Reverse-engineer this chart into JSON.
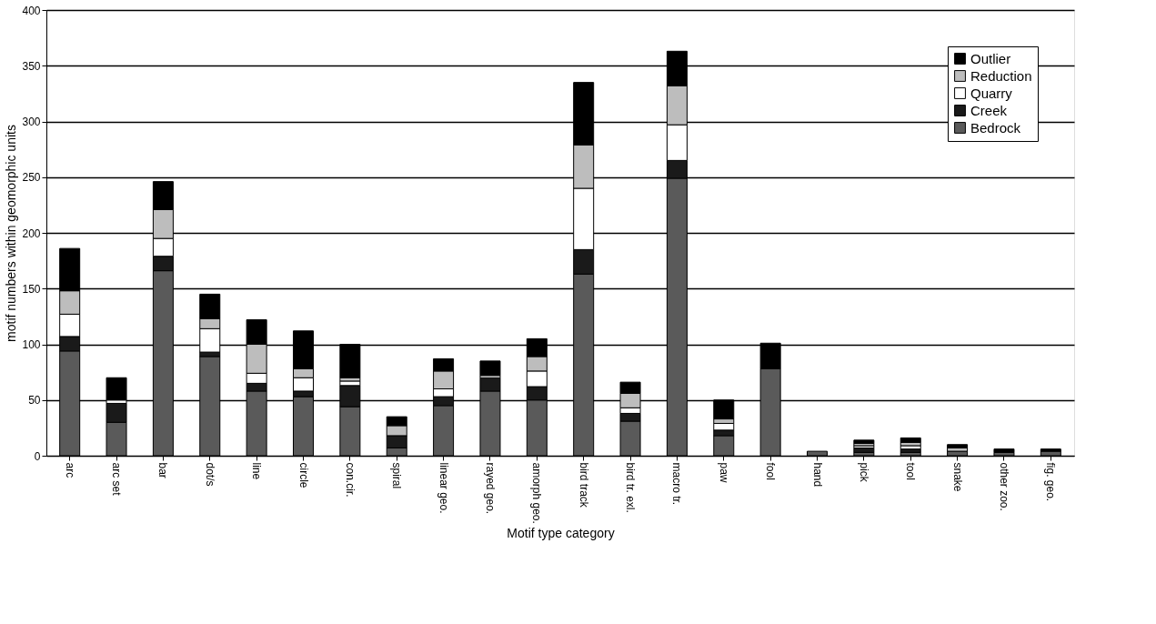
{
  "chart_data": {
    "type": "bar",
    "stacked": true,
    "xlabel": "Motif type category",
    "ylabel": "motif numbers within geomorphic units",
    "categories": [
      "arc",
      "arc set",
      "bar",
      "dot/s",
      "line",
      "circle",
      "con.cir.",
      "spiral",
      "linear geo.",
      "rayed geo.",
      "amorph geo.",
      "bird track",
      "bird tr. exl.",
      "macro tr.",
      "paw",
      "fool",
      "hand",
      "pick",
      "tool",
      "snake",
      "other zoo.",
      "fig. geo."
    ],
    "series": [
      {
        "name": "Bedrock",
        "color": "#5a5a5a",
        "values": [
          94,
          30,
          166,
          89,
          58,
          53,
          44,
          7,
          45,
          58,
          50,
          163,
          31,
          249,
          18,
          78,
          4,
          3,
          3,
          4,
          3,
          4
        ]
      },
      {
        "name": "Creek",
        "color": "#1a1a1a",
        "values": [
          13,
          17,
          13,
          4,
          7,
          5,
          19,
          11,
          8,
          12,
          12,
          22,
          7,
          16,
          5,
          null,
          null,
          4,
          3,
          null,
          null,
          null
        ]
      },
      {
        "name": "Quarry",
        "color": "#ffffff",
        "values": [
          20,
          3,
          16,
          21,
          9,
          12,
          4,
          null,
          7,
          2,
          14,
          55,
          5,
          32,
          6,
          null,
          null,
          2,
          3,
          null,
          null,
          null
        ]
      },
      {
        "name": "Reduction",
        "color": "#bdbdbd",
        "values": [
          21,
          null,
          26,
          9,
          26,
          8,
          3,
          9,
          16,
          null,
          13,
          39,
          13,
          35,
          4,
          null,
          null,
          2,
          3,
          3,
          null,
          null
        ]
      },
      {
        "name": "Outlier",
        "color": "#000000",
        "values": [
          38,
          20,
          25,
          22,
          22,
          34,
          30,
          8,
          11,
          13,
          16,
          56,
          10,
          31,
          17,
          23,
          null,
          3,
          4,
          3,
          3,
          2
        ]
      }
    ],
    "ylim": [
      0,
      400
    ],
    "yticks": [
      0,
      50,
      100,
      150,
      200,
      250,
      300,
      350,
      400
    ],
    "grid": "y",
    "legend": "top right"
  }
}
